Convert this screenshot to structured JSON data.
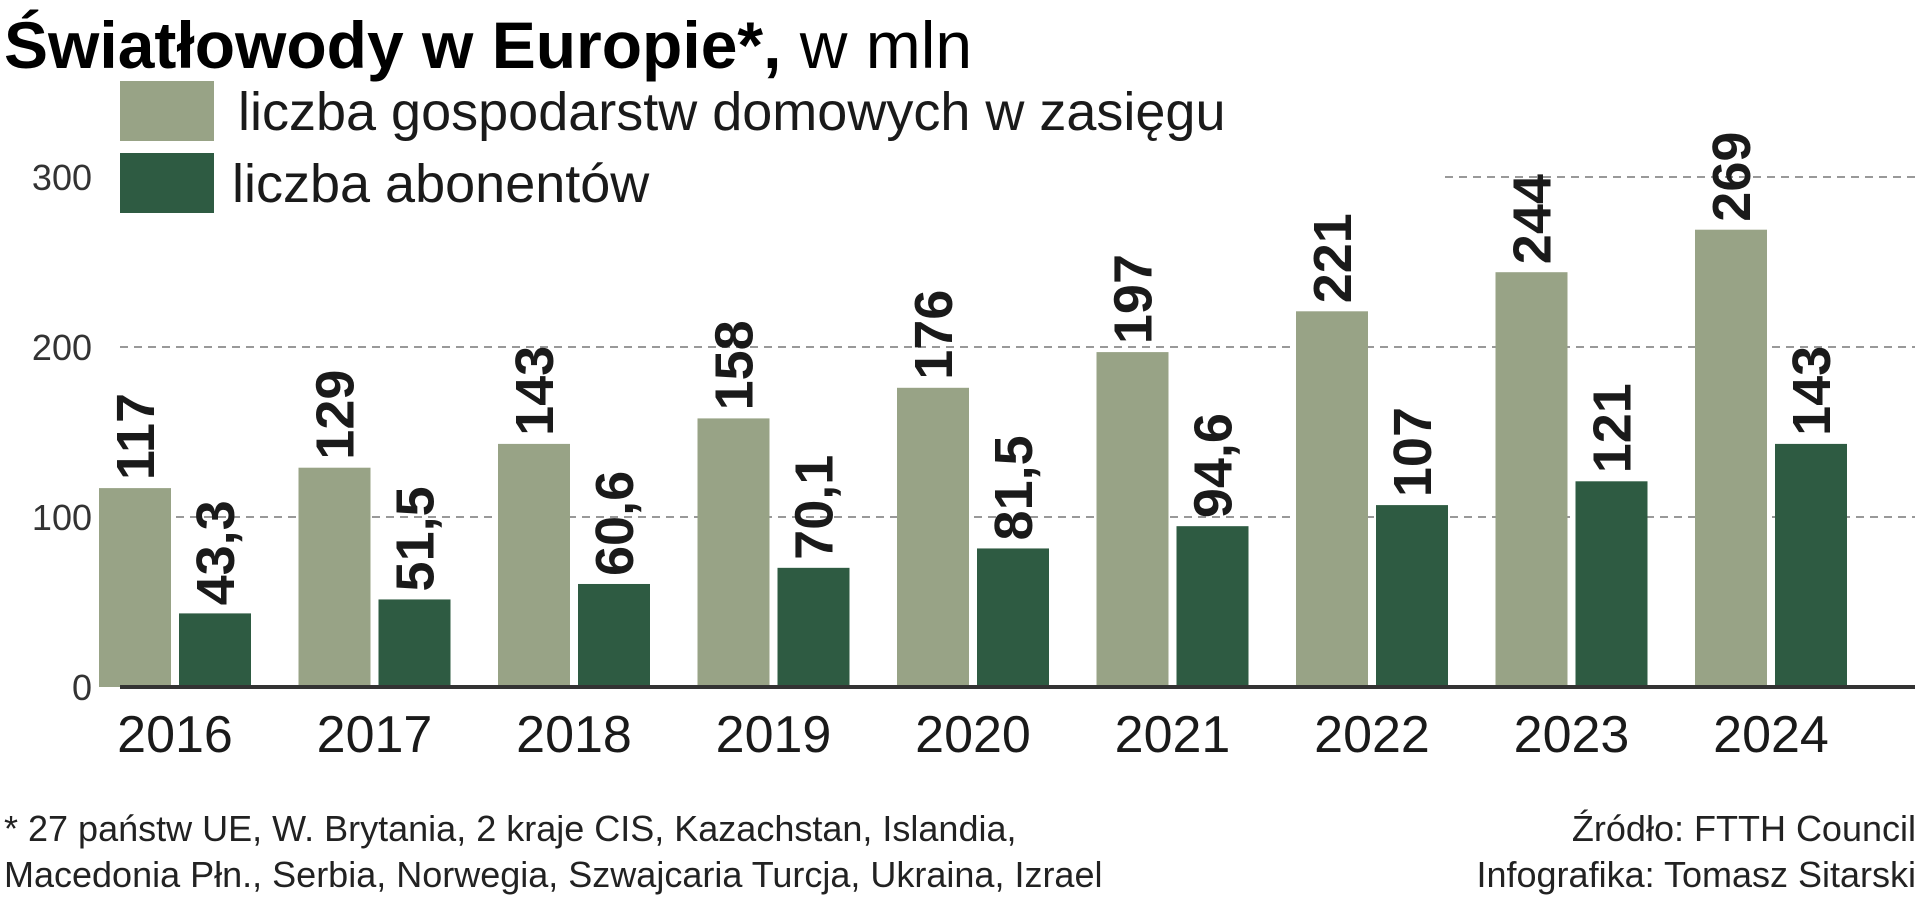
{
  "colors": {
    "households": "#98a386",
    "subscribers": "#2e5b42",
    "grid": "#999999",
    "axis": "#333333"
  },
  "chart_data": {
    "type": "bar",
    "title_bold": "Światłowody w Europie*,",
    "title_regular": " w mln",
    "categories": [
      "2016",
      "2017",
      "2018",
      "2019",
      "2020",
      "2021",
      "2022",
      "2023",
      "2024"
    ],
    "series": [
      {
        "name": "liczba gospodarstw domowych w zasięgu",
        "values": [
          117,
          129,
          143,
          158,
          176,
          197,
          221,
          244,
          269
        ],
        "labels": [
          "117",
          "129",
          "143",
          "158",
          "176",
          "197",
          "221",
          "244",
          "269"
        ]
      },
      {
        "name": "liczba abonentów",
        "values": [
          43.3,
          51.5,
          60.6,
          70.1,
          81.5,
          94.6,
          107,
          121,
          143
        ],
        "labels": [
          "43,3",
          "51,5",
          "60,6",
          "70,1",
          "81,5",
          "94,6",
          "107",
          "121",
          "143"
        ]
      }
    ],
    "yticks": [
      0,
      100,
      200,
      300
    ],
    "ylim": [
      0,
      300
    ],
    "grid": true,
    "legend": "top-left"
  },
  "footnote": {
    "line1": "* 27 państw UE, W. Brytania, 2 kraje CIS, Kazachstan, Islandia,",
    "line2": "Macedonia Płn., Serbia, Norwegia, Szwajcaria Turcja, Ukraina, Izrael"
  },
  "credits": {
    "source": "Źródło: FTTH Council",
    "author": "Infografika: Tomasz Sitarski"
  }
}
